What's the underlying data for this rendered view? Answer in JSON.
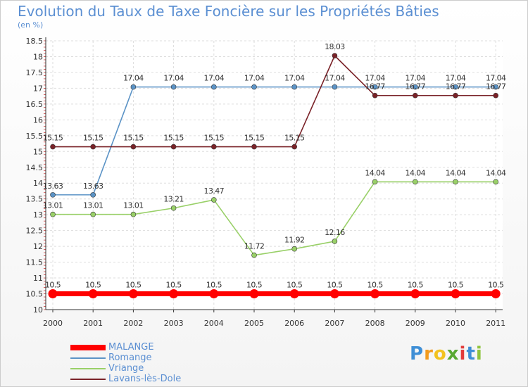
{
  "chart_data": {
    "type": "line",
    "title": "Evolution du Taux de Taxe Foncière sur les Propriétés Bâties",
    "subtitle": "(en %)",
    "xlabel": "",
    "ylabel": "",
    "categories": [
      "2000",
      "2001",
      "2002",
      "2003",
      "2004",
      "2005",
      "2006",
      "2007",
      "2008",
      "2009",
      "2010",
      "2011"
    ],
    "ylim": [
      10,
      18.5
    ],
    "y_ticks": [
      "10",
      "10.5",
      "11",
      "11.5",
      "12",
      "12.5",
      "13",
      "13.5",
      "14",
      "14.5",
      "15",
      "15.5",
      "16",
      "16.5",
      "17",
      "17.5",
      "18",
      "18.5"
    ],
    "grid": true,
    "legend_position": "bottom-left",
    "series": [
      {
        "name": "MALANGE",
        "color": "#ff0000",
        "values": [
          10.5,
          10.5,
          10.5,
          10.5,
          10.5,
          10.5,
          10.5,
          10.5,
          10.5,
          10.5,
          10.5,
          10.5
        ],
        "labels": [
          "10.5",
          "10.5",
          "10.5",
          "10.5",
          "10.5",
          "10.5",
          "10.5",
          "10.5",
          "10.5",
          "10.5",
          "10.5",
          "10.5"
        ]
      },
      {
        "name": "Romange",
        "color": "#5b93c6",
        "values": [
          13.63,
          13.63,
          17.04,
          17.04,
          17.04,
          17.04,
          17.04,
          17.04,
          17.04,
          17.04,
          17.04,
          17.04
        ],
        "labels": [
          "13.63",
          "13.63",
          "17.04",
          "17.04",
          "17.04",
          "17.04",
          "17.04",
          "17.04",
          "17.04",
          "17.04",
          "17.04",
          "17.04"
        ]
      },
      {
        "name": "Vriange",
        "color": "#99d068",
        "values": [
          13.01,
          13.01,
          13.01,
          13.21,
          13.47,
          11.72,
          11.92,
          12.16,
          14.04,
          14.04,
          14.04,
          14.04
        ],
        "labels": [
          "13.01",
          "13.01",
          "13.01",
          "13.21",
          "13.47",
          "11.72",
          "11.92",
          "12.16",
          "14.04",
          "14.04",
          "14.04",
          "14.04"
        ]
      },
      {
        "name": "Lavans-lès-Dole",
        "color": "#7a2228",
        "values": [
          15.15,
          15.15,
          15.15,
          15.15,
          15.15,
          15.15,
          15.15,
          18.03,
          16.77,
          16.77,
          16.77,
          16.77
        ],
        "labels": [
          "15.15",
          "15.15",
          "15.15",
          "15.15",
          "15.15",
          "15.15",
          "15.15",
          "18.03",
          "16.77",
          "16.77",
          "16.77",
          "16.77"
        ]
      }
    ]
  },
  "logo": {
    "letters": [
      "P",
      "r",
      "o",
      "x",
      "i",
      "t",
      "i"
    ],
    "colors": [
      "#3f8fd6",
      "#f29b1e",
      "#f2c21e",
      "#59a832",
      "#e23b3b",
      "#3f8fd6",
      "#8fc43d"
    ]
  }
}
